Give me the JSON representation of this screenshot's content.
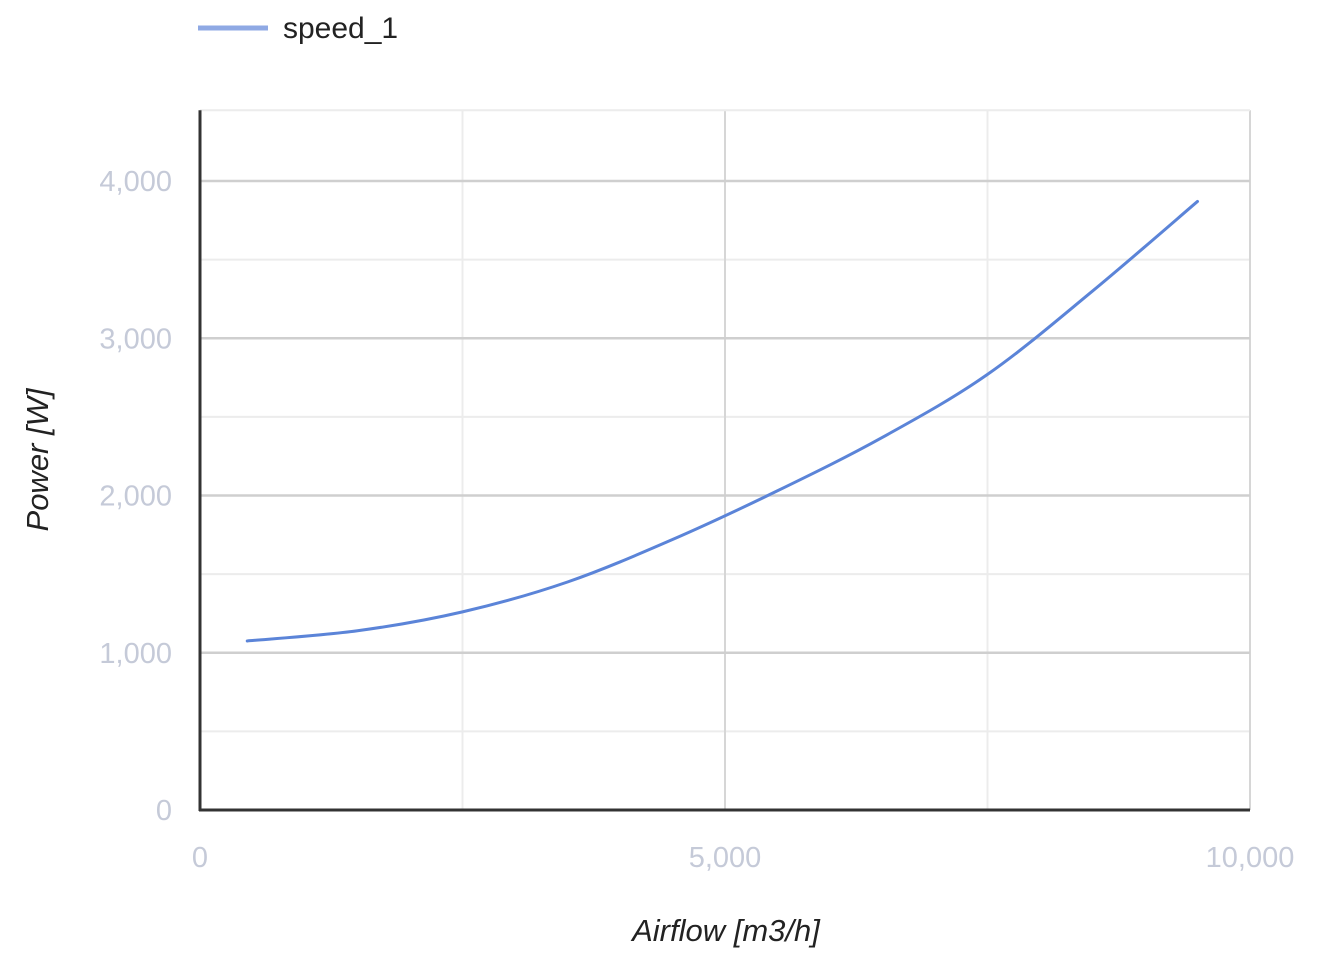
{
  "chart_data": {
    "type": "line",
    "title": "",
    "xlabel": "Airflow [m3/h]",
    "ylabel": "Power [W]",
    "xlim": [
      0,
      10000
    ],
    "ylim": [
      0,
      4000
    ],
    "x_ticks": [
      0,
      5000,
      10000
    ],
    "x_tick_labels": [
      "0",
      "5,000",
      "10,000"
    ],
    "y_ticks": [
      0,
      1000,
      2000,
      3000,
      4000
    ],
    "y_tick_labels": [
      "0",
      "1,000",
      "2,000",
      "3,000",
      "4,000"
    ],
    "x_minor_gridlines": [
      2500,
      7500
    ],
    "y_minor_gridlines": [
      500,
      1500,
      2500,
      3500
    ],
    "y_axis_extends_to": 4450,
    "grid": true,
    "legend": "top-left",
    "series": [
      {
        "name": "speed_1",
        "color": "#5b84d8",
        "legend_color": "#8fa9e4",
        "x": [
          450,
          1500,
          2500,
          3500,
          4500,
          5500,
          6500,
          7500,
          8500,
          9500
        ],
        "y": [
          1075,
          1140,
          1260,
          1450,
          1720,
          2030,
          2370,
          2770,
          3300,
          3870
        ]
      }
    ]
  }
}
